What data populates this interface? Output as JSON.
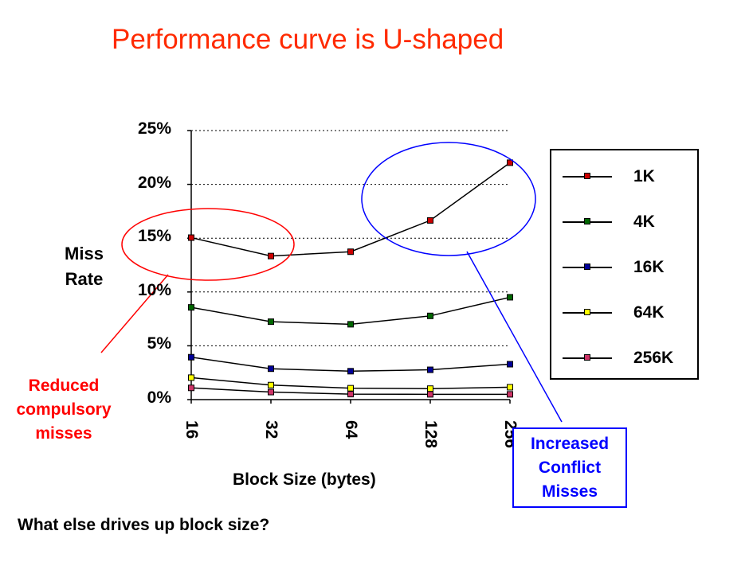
{
  "slide": {
    "title": "Performance curve is U-shaped",
    "question": "What else drives up block size?"
  },
  "chart_data": {
    "type": "line",
    "xlabel": "Block Size (bytes)",
    "ylabel_line1": "Miss",
    "ylabel_line2": "Rate",
    "categories": [
      "16",
      "32",
      "64",
      "128",
      "256"
    ],
    "yticks": [
      "25%",
      "20%",
      "15%",
      "10%",
      "5%",
      "0%"
    ],
    "ylim": [
      0,
      25
    ],
    "grid": "horizontal dotted",
    "legend_position": "right",
    "series": [
      {
        "name": "1K",
        "values": [
          15.05,
          13.34,
          13.74,
          16.65,
          22.01
        ],
        "color": "#cc0000"
      },
      {
        "name": "4K",
        "values": [
          8.57,
          7.24,
          7.0,
          7.78,
          9.51
        ],
        "color": "#006600"
      },
      {
        "name": "16K",
        "values": [
          3.94,
          2.87,
          2.64,
          2.77,
          3.29
        ],
        "color": "#000099"
      },
      {
        "name": "64K",
        "values": [
          2.04,
          1.35,
          1.06,
          1.02,
          1.15
        ],
        "color": "#ffff00"
      },
      {
        "name": "256K",
        "values": [
          1.09,
          0.7,
          0.51,
          0.49,
          0.49
        ],
        "color": "#cc3366"
      }
    ]
  },
  "callouts": {
    "reduced": {
      "line1": "Reduced",
      "line2": "compulsory",
      "line3": "misses",
      "color": "#ff0000"
    },
    "increased": {
      "line1": "Increased",
      "line2": "Conflict",
      "line3": "Misses",
      "color": "#0000ff"
    }
  }
}
